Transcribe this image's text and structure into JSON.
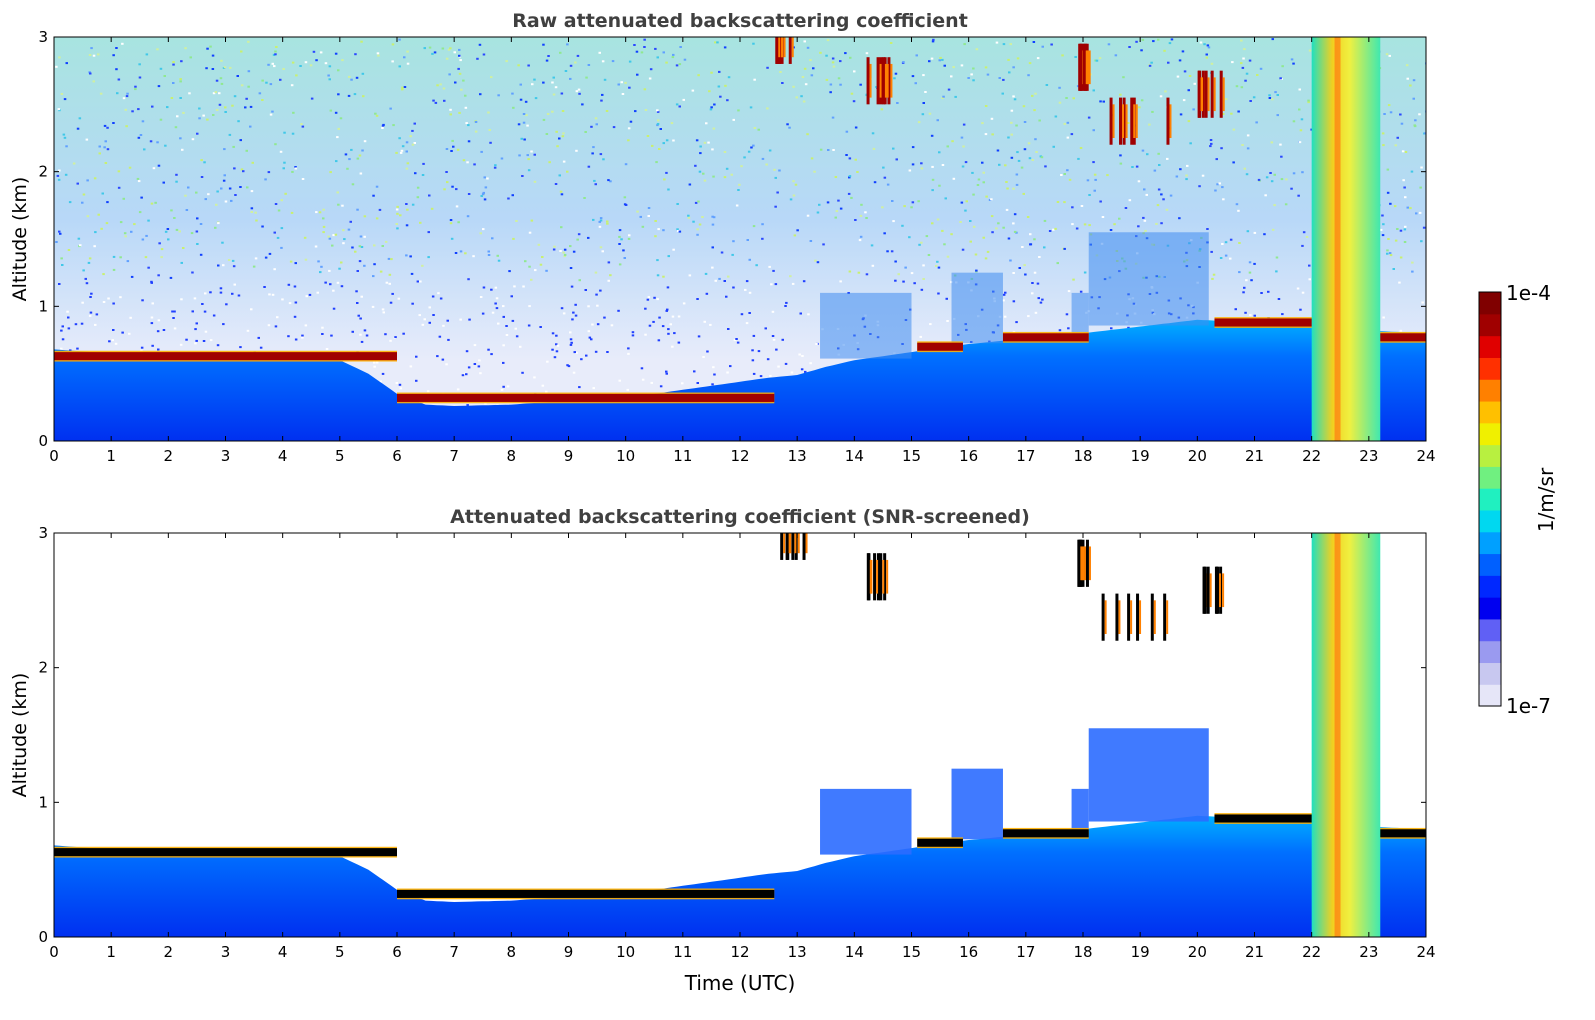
{
  "figure": {
    "colorbar": {
      "label": "1/m/sr",
      "max_label": "1e-4",
      "min_label": "1e-7",
      "colors": [
        "#e6e6f8",
        "#c8c8f0",
        "#9a9af0",
        "#6060f5",
        "#0000f0",
        "#0028ff",
        "#0060ff",
        "#00a0ff",
        "#00d8f0",
        "#20f0c0",
        "#70f080",
        "#b8f040",
        "#f0f000",
        "#ffc000",
        "#ff8000",
        "#ff3000",
        "#e00000",
        "#a00000",
        "#800000"
      ]
    }
  },
  "chart_data": [
    {
      "type": "heatmap",
      "title": "Raw attenuated backscattering coefficient",
      "xlabel": "",
      "ylabel": "Altitude (km)",
      "xlim": [
        0,
        24
      ],
      "ylim": [
        0,
        3
      ],
      "x_ticks": [
        "0",
        "1",
        "2",
        "3",
        "4",
        "5",
        "6",
        "7",
        "8",
        "9",
        "10",
        "11",
        "12",
        "13",
        "14",
        "15",
        "16",
        "17",
        "18",
        "19",
        "20",
        "21",
        "22",
        "23",
        "24"
      ],
      "y_ticks": [
        "0",
        "1",
        "2",
        "3"
      ],
      "color_scale": "log",
      "zlim": [
        "1e-7",
        "1e-4"
      ],
      "boundary_layer_top_km": [
        [
          0,
          0.68
        ],
        [
          1,
          0.65
        ],
        [
          2,
          0.62
        ],
        [
          3,
          0.63
        ],
        [
          4,
          0.65
        ],
        [
          5,
          0.6
        ],
        [
          5.5,
          0.5
        ],
        [
          6,
          0.35
        ],
        [
          6.5,
          0.27
        ],
        [
          7,
          0.26
        ],
        [
          8,
          0.27
        ],
        [
          9,
          0.3
        ],
        [
          10,
          0.32
        ],
        [
          11,
          0.38
        ],
        [
          12,
          0.44
        ],
        [
          12.5,
          0.47
        ],
        [
          13,
          0.49
        ],
        [
          13.5,
          0.55
        ],
        [
          14,
          0.6
        ],
        [
          15,
          0.66
        ],
        [
          16,
          0.72
        ],
        [
          17,
          0.76
        ],
        [
          18,
          0.8
        ],
        [
          19,
          0.85
        ],
        [
          20,
          0.9
        ],
        [
          21,
          0.88
        ],
        [
          22,
          0.86
        ],
        [
          23,
          0.82
        ],
        [
          24,
          0.8
        ]
      ],
      "cloud_layers_km": [
        [
          0,
          6,
          0.63
        ],
        [
          6,
          12.6,
          0.32
        ],
        [
          15.1,
          15.9,
          0.7
        ],
        [
          16.6,
          18.1,
          0.77
        ],
        [
          20.3,
          22.2,
          0.88
        ],
        [
          23.1,
          24,
          0.77
        ]
      ],
      "high_cloud_km": [
        [
          12.6,
          13.1,
          2.9
        ],
        [
          14.2,
          14.6,
          2.6
        ],
        [
          17.9,
          18.1,
          2.7
        ],
        [
          18.2,
          19.5,
          2.3
        ],
        [
          20.0,
          20.4,
          2.5
        ]
      ],
      "rain_column_hours": [
        22.0,
        23.2
      ]
    },
    {
      "type": "heatmap",
      "title": "Attenuated backscattering coefficient (SNR-screened)",
      "xlabel": "Time (UTC)",
      "ylabel": "Altitude (km)",
      "xlim": [
        0,
        24
      ],
      "ylim": [
        0,
        3
      ],
      "x_ticks": [
        "0",
        "1",
        "2",
        "3",
        "4",
        "5",
        "6",
        "7",
        "8",
        "9",
        "10",
        "11",
        "12",
        "13",
        "14",
        "15",
        "16",
        "17",
        "18",
        "19",
        "20",
        "21",
        "22",
        "23",
        "24"
      ],
      "y_ticks": [
        "0",
        "1",
        "2",
        "3"
      ],
      "color_scale": "log",
      "zlim": [
        "1e-7",
        "1e-4"
      ],
      "screened_clouds_black": true
    }
  ]
}
